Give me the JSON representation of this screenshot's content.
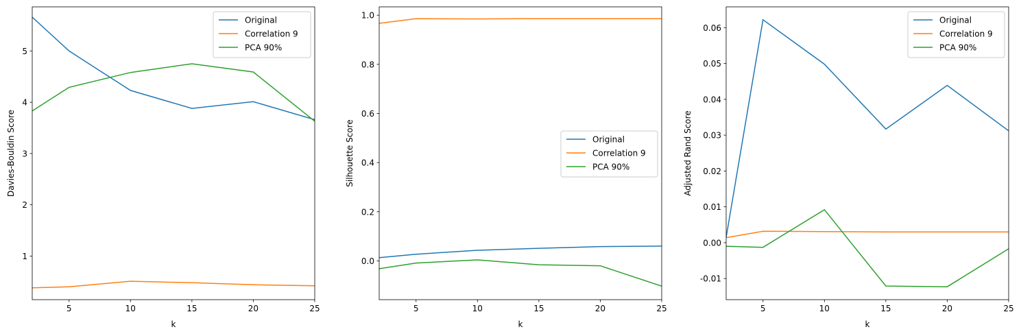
{
  "chart_data": [
    {
      "type": "line",
      "xlabel": "k",
      "ylabel": "Davies-Bouldin Score",
      "x": [
        2,
        5,
        10,
        15,
        20,
        25
      ],
      "xlim": [
        2,
        25
      ],
      "ylim": [
        0.15,
        5.86
      ],
      "xticks": [
        5,
        10,
        15,
        20,
        25
      ],
      "yticks": [
        1,
        2,
        3,
        4,
        5
      ],
      "ytick_labels": [
        "1",
        "2",
        "3",
        "4",
        "5"
      ],
      "legend_position": "upper right",
      "series": [
        {
          "name": "Original",
          "color": "#1f77b4",
          "values": [
            5.66,
            5.0,
            4.23,
            3.88,
            4.01,
            3.66
          ]
        },
        {
          "name": "Correlation 9",
          "color": "#ff7f0e",
          "values": [
            0.38,
            0.4,
            0.51,
            0.48,
            0.44,
            0.42
          ]
        },
        {
          "name": "PCA 90%",
          "color": "#2ca02c",
          "values": [
            3.83,
            4.29,
            4.58,
            4.75,
            4.59,
            3.63
          ]
        }
      ]
    },
    {
      "type": "line",
      "xlabel": "k",
      "ylabel": "Silhouette Score",
      "x": [
        2,
        5,
        10,
        15,
        20,
        25
      ],
      "xlim": [
        2,
        25
      ],
      "ylim": [
        -0.158,
        1.034
      ],
      "xticks": [
        5,
        10,
        15,
        20,
        25
      ],
      "yticks": [
        0.0,
        0.2,
        0.4,
        0.6,
        0.8,
        1.0
      ],
      "ytick_labels": [
        "0.0",
        "0.2",
        "0.4",
        "0.6",
        "0.8",
        "1.0"
      ],
      "legend_position": "center right",
      "series": [
        {
          "name": "Original",
          "color": "#1f77b4",
          "values": [
            0.013,
            0.027,
            0.043,
            0.051,
            0.058,
            0.06
          ]
        },
        {
          "name": "Correlation 9",
          "color": "#ff7f0e",
          "values": [
            0.967,
            0.986,
            0.985,
            0.986,
            0.986,
            0.986
          ]
        },
        {
          "name": "PCA 90%",
          "color": "#2ca02c",
          "values": [
            -0.032,
            -0.009,
            0.004,
            -0.016,
            -0.02,
            -0.103
          ]
        }
      ]
    },
    {
      "type": "line",
      "xlabel": "k",
      "ylabel": "Adjusted Rand Score",
      "x": [
        2,
        5,
        10,
        15,
        20,
        25
      ],
      "xlim": [
        2,
        25
      ],
      "ylim": [
        -0.0159,
        0.0658
      ],
      "xticks": [
        5,
        10,
        15,
        20,
        25
      ],
      "yticks": [
        -0.01,
        0.0,
        0.01,
        0.02,
        0.03,
        0.04,
        0.05,
        0.06
      ],
      "ytick_labels": [
        "-0.01",
        "0.00",
        "0.01",
        "0.02",
        "0.03",
        "0.04",
        "0.05",
        "0.06"
      ],
      "legend_position": "upper right",
      "series": [
        {
          "name": "Original",
          "color": "#1f77b4",
          "values": [
            0.0015,
            0.0622,
            0.0498,
            0.0317,
            0.0439,
            0.0312
          ]
        },
        {
          "name": "Correlation 9",
          "color": "#ff7f0e",
          "values": [
            0.0014,
            0.0032,
            0.0031,
            0.003,
            0.003,
            0.003
          ]
        },
        {
          "name": "PCA 90%",
          "color": "#2ca02c",
          "values": [
            -0.001,
            -0.0013,
            0.0092,
            -0.0121,
            -0.0123,
            -0.0017
          ]
        }
      ]
    }
  ]
}
